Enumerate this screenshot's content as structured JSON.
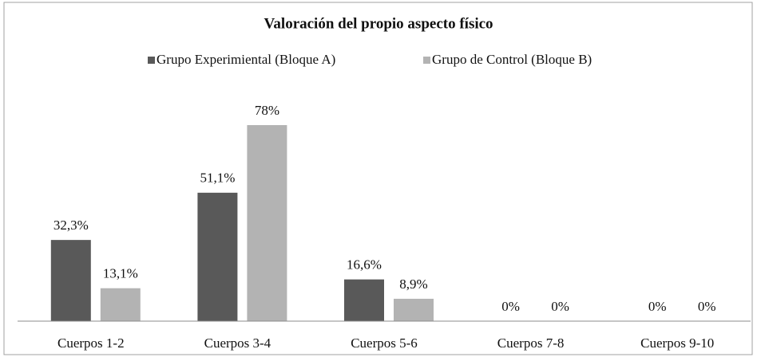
{
  "chart_data": {
    "type": "bar",
    "title": "Valoración del propio aspecto físico",
    "categories": [
      "Cuerpos 1-2",
      "Cuerpos 3-4",
      "Cuerpos 5-6",
      "Cuerpos 7-8",
      "Cuerpos 9-10"
    ],
    "series": [
      {
        "name": "Grupo Experimiental (Bloque A)",
        "color": "#595959",
        "values": [
          32.3,
          51.1,
          16.6,
          0,
          0
        ],
        "value_labels": [
          "32,3%",
          "51,1%",
          "16,6%",
          "0%",
          "0%"
        ]
      },
      {
        "name": "Grupo de Control (Bloque B)",
        "color": "#b3b3b3",
        "values": [
          13.1,
          78,
          8.9,
          0,
          0
        ],
        "value_labels": [
          "13,1%",
          "78%",
          "8,9%",
          "0%",
          "0%"
        ]
      }
    ],
    "legend": "top"
  }
}
